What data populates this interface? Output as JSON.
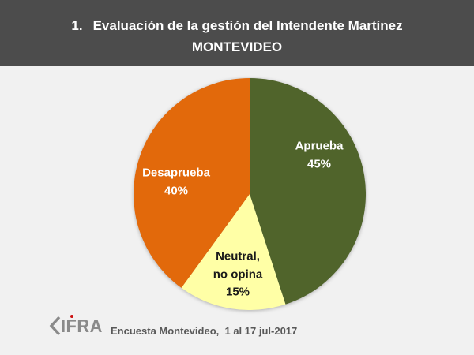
{
  "header": {
    "number": "1.",
    "title": "Evaluación de la gestión del Intendente Martínez",
    "subtitle": "MONTEVIDEO",
    "bg_color": "#4C4C4C",
    "text_color": "#FFFFFF"
  },
  "chart_data": {
    "type": "pie",
    "title": "Evaluación de la gestión del Intendente Martínez — MONTEVIDEO",
    "start_angle_deg": 0,
    "direction": "clockwise",
    "background_color": "#F1F1F1",
    "slices": [
      {
        "label": "Aprueba",
        "value": 45,
        "color": "#50642B",
        "label_color": "#FFFFFF",
        "label_lines": [
          "Aprueba",
          "45%"
        ]
      },
      {
        "label": "Neutral, no opina",
        "value": 15,
        "color": "#FFFFA6",
        "label_color": "#1A1A1A",
        "label_lines": [
          "Neutral,",
          "no opina",
          "15%"
        ]
      },
      {
        "label": "Desaprueba",
        "value": 40,
        "color": "#E2690B",
        "label_color": "#FFFFFF",
        "label_lines": [
          "Desaprueba",
          "40%"
        ]
      }
    ]
  },
  "footer": {
    "logo_name": "CIFRA",
    "logo_letters": "IFRA",
    "logo_color": "#8A8A8A",
    "logo_dot_color": "#CC1010",
    "caption": "Encuesta Montevideo,  1 al 17 jul-2017",
    "caption_color": "#595959"
  }
}
